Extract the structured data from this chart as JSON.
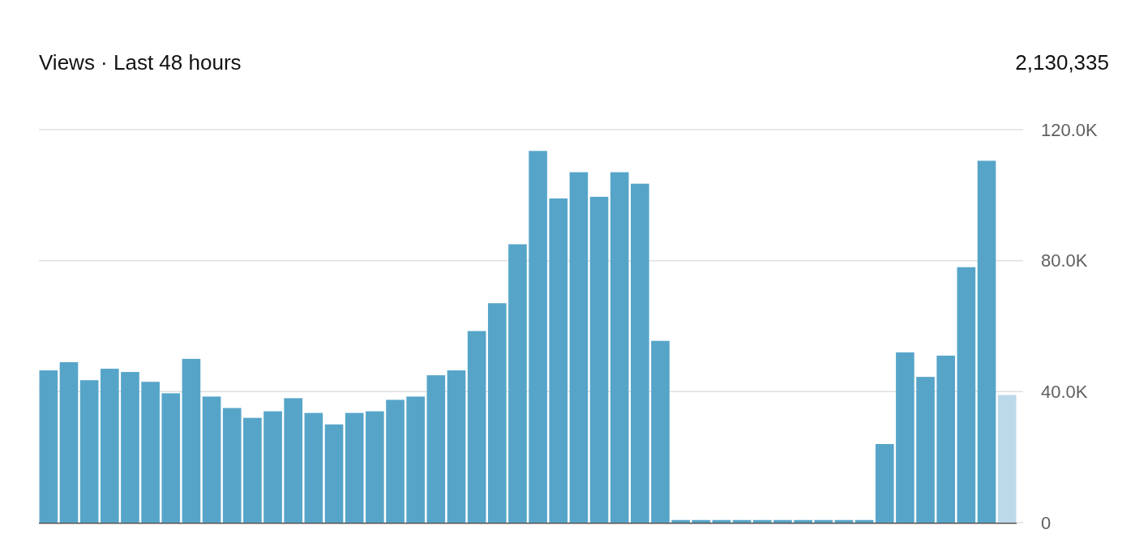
{
  "chart_data": {
    "type": "bar",
    "title": "Views · Last 48 hours",
    "subtitle": "2,130,335",
    "categories": [
      null,
      null,
      null,
      null,
      null,
      null,
      null,
      null,
      null,
      null,
      null,
      null,
      null,
      null,
      null,
      null,
      null,
      null,
      null,
      null,
      null,
      null,
      null,
      null,
      null,
      null,
      null,
      null,
      null,
      null,
      null,
      null,
      null,
      null,
      null,
      null,
      null,
      null,
      null,
      null,
      null,
      null,
      null,
      null,
      null,
      null,
      null,
      null
    ],
    "values": [
      46.5,
      49,
      43.5,
      47,
      46,
      43,
      39.5,
      50,
      38.5,
      35,
      32,
      34,
      38,
      33.5,
      30,
      33.5,
      34,
      37.5,
      38.5,
      45,
      46.5,
      58.5,
      67,
      85,
      113.5,
      99,
      107,
      99.5,
      107,
      103.5,
      55.5,
      0.8,
      0.8,
      0.8,
      0.8,
      0.8,
      0.8,
      0.8,
      0.8,
      0.8,
      0.8,
      24,
      52,
      44.5,
      51,
      78,
      110.5,
      39
    ],
    "colors": [
      "#56a5c9",
      "#56a5c9",
      "#56a5c9",
      "#56a5c9",
      "#56a5c9",
      "#56a5c9",
      "#56a5c9",
      "#56a5c9",
      "#56a5c9",
      "#56a5c9",
      "#56a5c9",
      "#56a5c9",
      "#56a5c9",
      "#56a5c9",
      "#56a5c9",
      "#56a5c9",
      "#56a5c9",
      "#56a5c9",
      "#56a5c9",
      "#56a5c9",
      "#56a5c9",
      "#56a5c9",
      "#56a5c9",
      "#56a5c9",
      "#56a5c9",
      "#56a5c9",
      "#56a5c9",
      "#56a5c9",
      "#56a5c9",
      "#56a5c9",
      "#56a5c9",
      "#56a5c9",
      "#56a5c9",
      "#56a5c9",
      "#56a5c9",
      "#56a5c9",
      "#56a5c9",
      "#56a5c9",
      "#56a5c9",
      "#56a5c9",
      "#56a5c9",
      "#56a5c9",
      "#56a5c9",
      "#56a5c9",
      "#56a5c9",
      "#56a5c9",
      "#56a5c9",
      "#bcd9e9"
    ],
    "ylim": [
      0,
      120
    ],
    "yticks": [
      {
        "value": 0,
        "label": "0"
      },
      {
        "value": 40,
        "label": "40.0K"
      },
      {
        "value": 80,
        "label": "80.0K"
      },
      {
        "value": 120,
        "label": "120.0K"
      }
    ],
    "grid": "y"
  }
}
